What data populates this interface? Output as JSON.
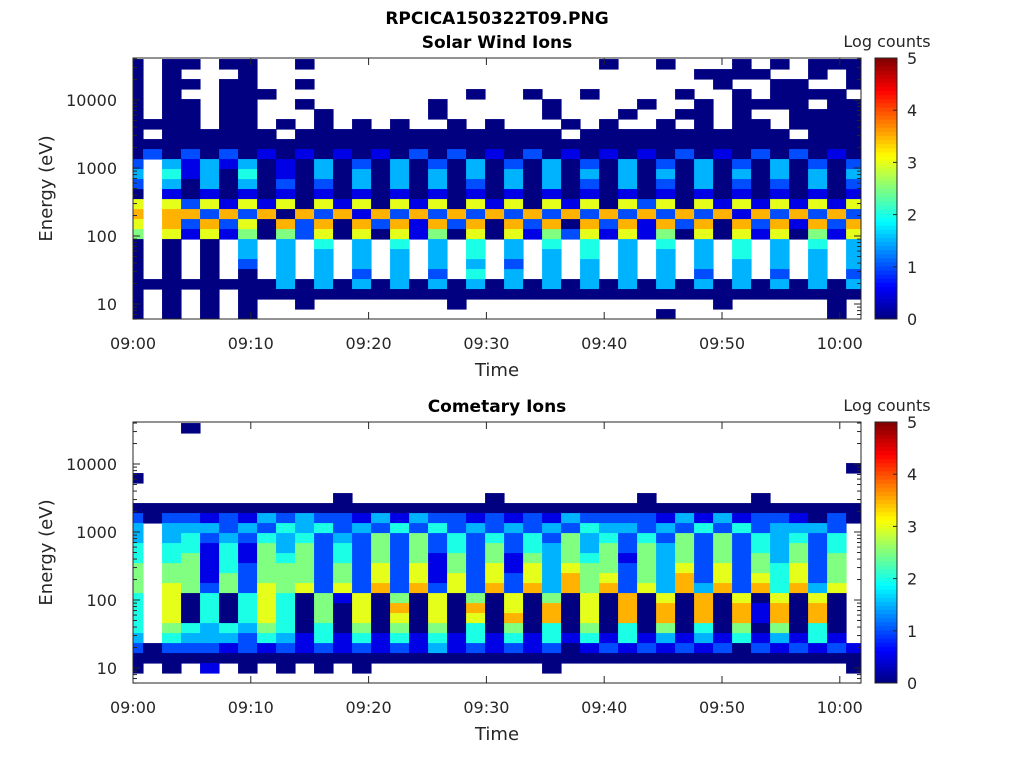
{
  "figure_title": "RPCICA150322T09.PNG",
  "chart_data": [
    {
      "type": "heatmap",
      "title": "Solar Wind Ions",
      "xlabel": "Time",
      "ylabel": "Energy (eV)",
      "colorbar_label": "Log counts",
      "colorbar_ticks": [
        "0",
        "1",
        "2",
        "3",
        "4",
        "5"
      ],
      "clim": [
        0,
        5
      ],
      "colormap": "jet",
      "xticks": [
        "09:00",
        "09:10",
        "09:20",
        "09:30",
        "09:40",
        "09:50",
        "10:00"
      ],
      "xtick_minutes": [
        0,
        10,
        20,
        30,
        40,
        50,
        60
      ],
      "xlim_minutes": [
        0,
        61.8
      ],
      "yticks": [
        "10",
        "100",
        "1000",
        "10000"
      ],
      "ytick_values": [
        10,
        100,
        1000,
        10000
      ],
      "yscale": "log",
      "ylim": [
        6,
        40000
      ],
      "time_bin_minutes": 1.613,
      "first_bin_start_minutes": -0.76,
      "cell_value_scale": 0.5,
      "rows_high_to_low_energy": [
        "0.00.00..0...............0..0...0.0.000",
        "0.0...0.......................0000..0.0",
        "0.00.00..0.....................0..00..0",
        "0.0..000..........0..0..0....0..0.0000.",
        "0.00.00..0......0.....0....0..0.0000.00",
        "0.00.00...0.....0.....0...0..00.0..0000",
        "0000.00.0.0.0.0..0.0...0.0..0.0.00.0000",
        "0.000000.00000000000000.00000000000.000",
        "000000000000000000000000000000000000000",
        "020202010101010202010201010102010202010",
        "2.3131301030203020302030203020302030202",
        "3.4130401030303030303030303030303030303",
        "2.3030302020303030203030203020302020302",
        "0.10101010101010101010101010101010101010",
        "6.62616160616061606160616062606161616161",
        "7.77272707271727272727272727272717272727",
        "6.72726072707271727072707271727072717272",
        "5.61615052606061506061526161506061605161",
        "0.0.0.3.3.4.3.4.3.4.3.4.4.3.4.3.4.3.4.3",
        "0.0.0.3.3.3.3.3.3.4.3.3.4.3.3.3.4.3.3.3",
        "0.0.0.2.3.3.3.3.3.3.2.3.3.3.3.3.3.3.3.3",
        "0.0.0.0.3.3.2.3.2.4.3.3.3.3.3.2.3.2.3.2",
        "000000003030303030303030303030303030303",
        "0.0.0.0000000000000000000000000000000000",
        "0.0.0.0..0.......0.............0.....0",
        "0.0.0.0.....................0........0"
      ]
    },
    {
      "type": "heatmap",
      "title": "Cometary Ions",
      "xlabel": "Time",
      "ylabel": "Energy (eV)",
      "colorbar_label": "Log counts",
      "colorbar_ticks": [
        "0",
        "1",
        "2",
        "3",
        "4",
        "5"
      ],
      "clim": [
        0,
        5
      ],
      "colormap": "jet",
      "xticks": [
        "09:00",
        "09:10",
        "09:20",
        "09:30",
        "09:40",
        "09:50",
        "10:00"
      ],
      "xtick_minutes": [
        0,
        10,
        20,
        30,
        40,
        50,
        60
      ],
      "xlim_minutes": [
        0,
        61.8
      ],
      "yticks": [
        "10",
        "100",
        "1000",
        "10000"
      ],
      "ytick_values": [
        10,
        100,
        1000,
        10000
      ],
      "yscale": "log",
      "ylim": [
        6,
        40000
      ],
      "time_bin_minutes": 1.613,
      "first_bin_start_minutes": -0.76,
      "cell_value_scale": 0.5,
      "rows_high_to_low_energy": [
        "...0...................................",
        "",
        "",
        "",
        "......................................0",
        "0......................................",
        "",
        "...........0.......0.......0.....0.....",
        "000000000000000000000000000000000000000",
        "202212132322131322121213222213131221020",
        "3.333232434232424232323243323242423332",
        "3.342324342325252424242534242525243424",
        "4.441415352425252425243535253525243524",
        "4.451415452425251525153545153525253525",
        "5.551425552526261526163655253626254625",
        "5.551525552526261626263756253726264625",
        "5.652526562627272627273757263737274736",
        "4.604046405160506050605060706070606060",
        "4.604046405060706070607060707070717070",
        "4.604046405060606060707060707070717070",
        "4.543435404050505040504050405040505040",
        "3.433324314141414141414141413131413141",
        "202221212121212131212120121212120212121",
        "000000000000000000000000000000000000000",
        "0.0.1.0.0.0.0.........0...............0",
        ""
      ]
    }
  ]
}
